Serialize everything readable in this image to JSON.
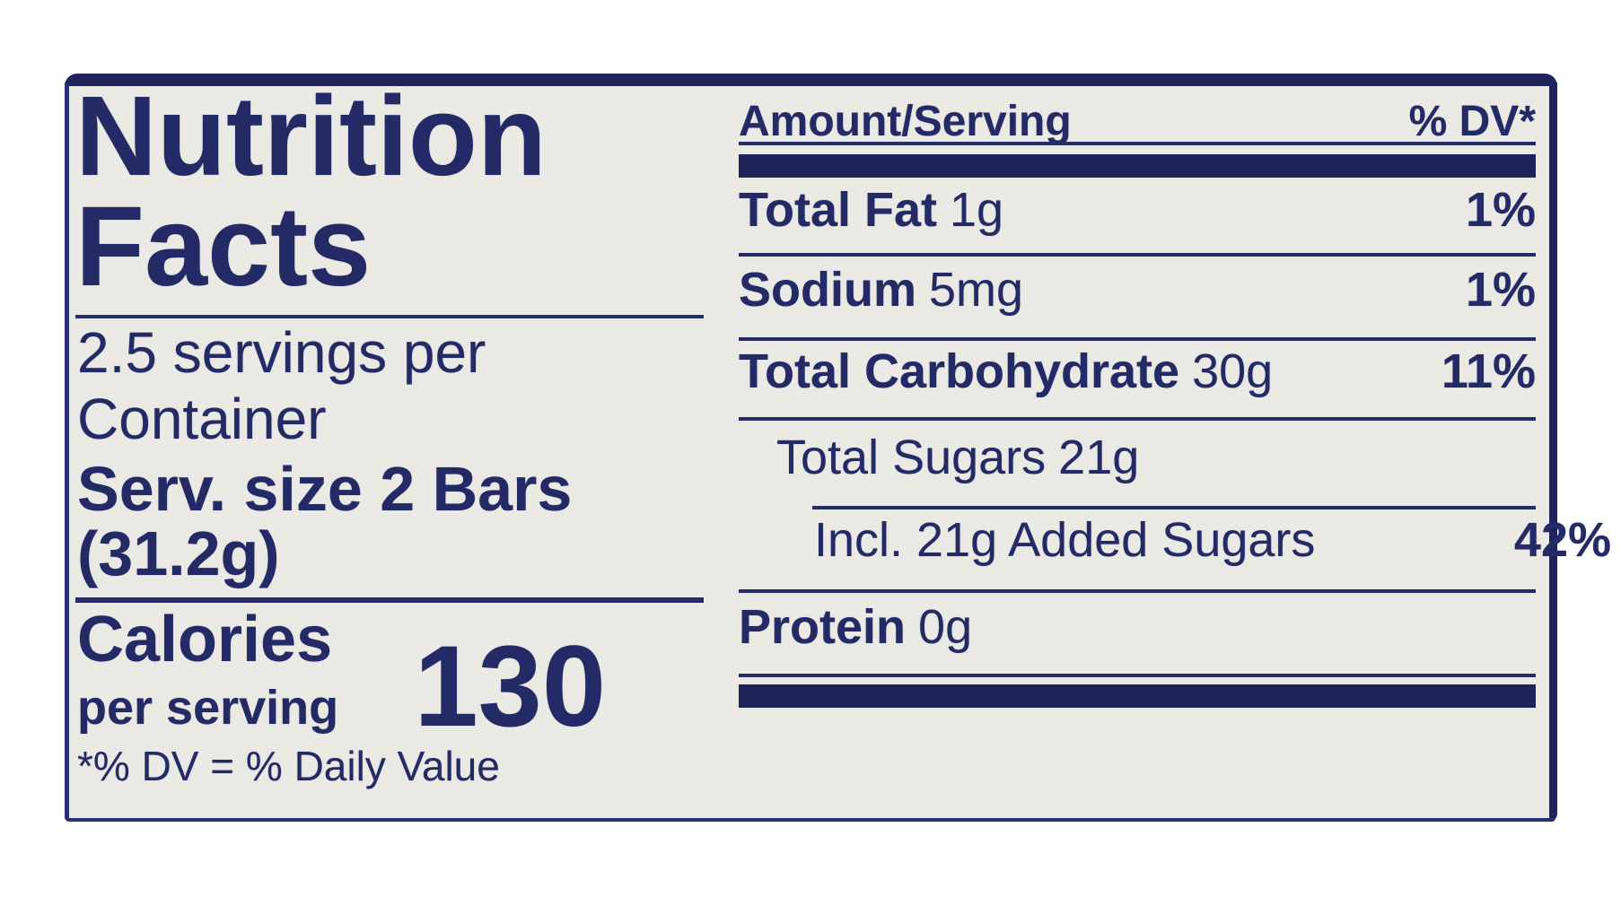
{
  "nutrition_label": {
    "title": {
      "line1": "Nutrition",
      "line2": "Facts"
    },
    "servings_per_container": {
      "line1": "2.5 servings per",
      "line2": "Container"
    },
    "serving_size": {
      "line1": "Serv. size 2 Bars",
      "line2": "(31.2g)"
    },
    "calories": {
      "label": "Calories",
      "sublabel": "per serving",
      "value": "130"
    },
    "footnote": "*% DV = % Daily Value",
    "table": {
      "amount_header": "Amount/Serving",
      "dv_header": "% DV*",
      "rows": [
        {
          "name": "Total Fat",
          "amount": "1g",
          "dv": "1%"
        },
        {
          "name": "Sodium",
          "amount": "5mg",
          "dv": "1%"
        },
        {
          "name": "Total Carbohydrate",
          "amount": "30g",
          "dv": "11%"
        },
        {
          "name": "Total Sugars",
          "amount": "21g",
          "dv": ""
        },
        {
          "name": "Incl. 21g Added Sugars",
          "amount": "",
          "dv": "42%"
        },
        {
          "name": "Protein",
          "amount": "0g",
          "dv": ""
        }
      ]
    },
    "colors": {
      "navy_text": "#232a66",
      "navy_bar": "#1e2359",
      "label_background": "#ebe9e4",
      "page_background": "#ffffff"
    }
  }
}
